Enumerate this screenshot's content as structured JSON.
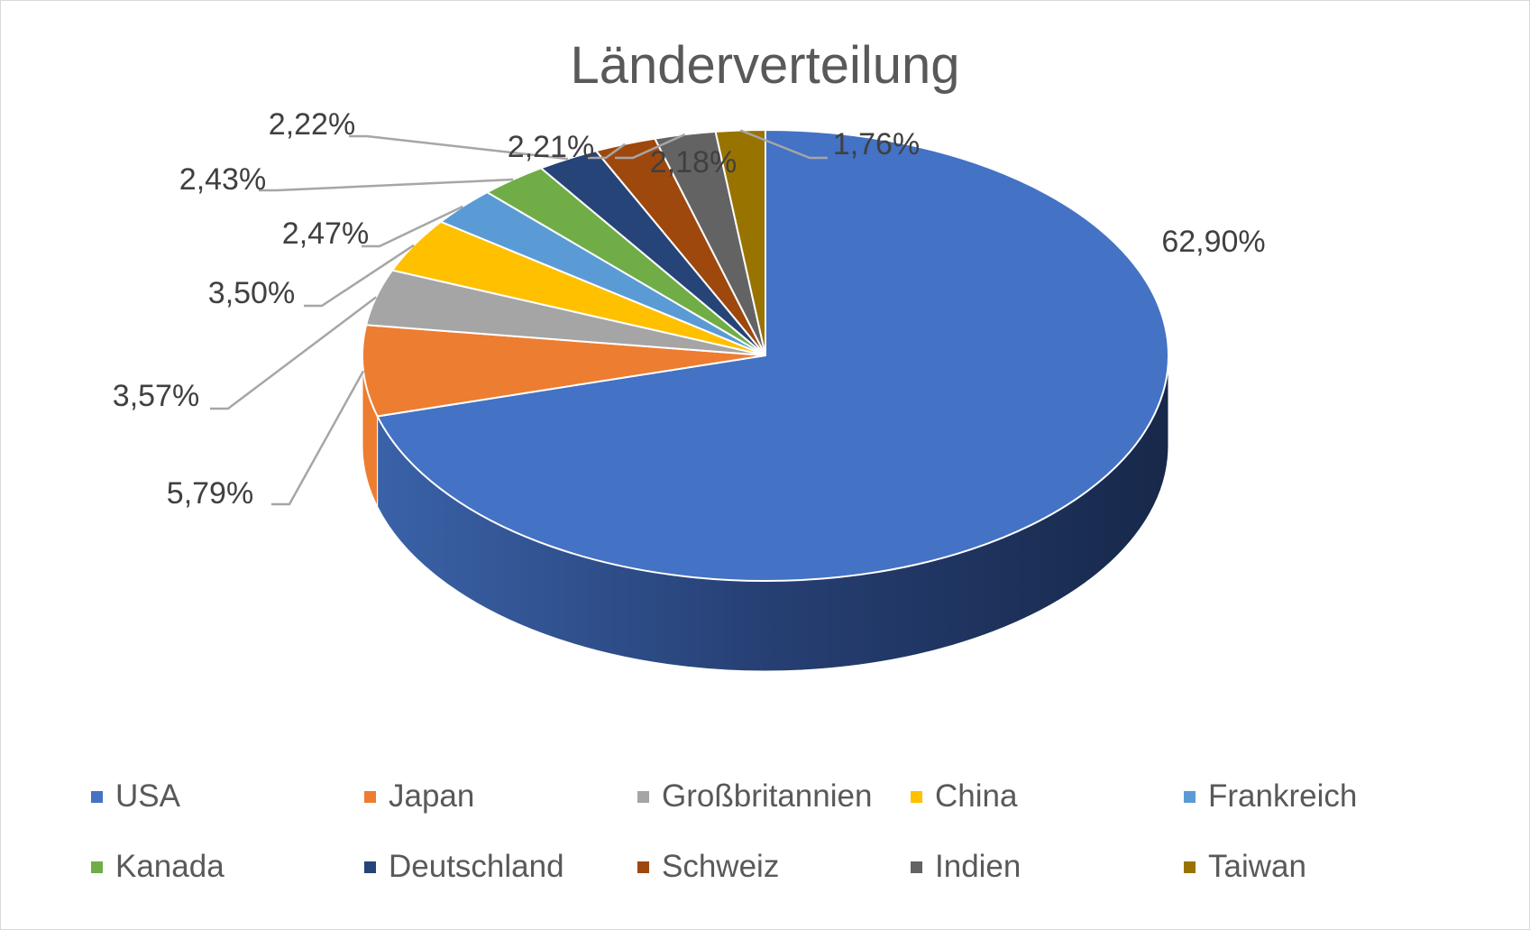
{
  "chart_data": {
    "type": "pie",
    "title": "Länderverteilung",
    "slices": [
      {
        "name": "USA",
        "value": 62.9,
        "label": "62,90%",
        "color": "#4472C4"
      },
      {
        "name": "Japan",
        "value": 5.79,
        "label": "5,79%",
        "color": "#ED7D31"
      },
      {
        "name": "Großbritannien",
        "value": 3.57,
        "label": "3,57%",
        "color": "#A5A5A5"
      },
      {
        "name": "China",
        "value": 3.5,
        "label": "3,50%",
        "color": "#FFC000"
      },
      {
        "name": "Frankreich",
        "value": 2.47,
        "label": "2,47%",
        "color": "#5B9BD5"
      },
      {
        "name": "Kanada",
        "value": 2.43,
        "label": "2,43%",
        "color": "#70AD47"
      },
      {
        "name": "Deutschland",
        "value": 2.22,
        "label": "2,22%",
        "color": "#264478"
      },
      {
        "name": "Schweiz",
        "value": 2.21,
        "label": "2,21%",
        "color": "#9E480E"
      },
      {
        "name": "Indien",
        "value": 2.18,
        "label": "2,18%",
        "color": "#636363"
      },
      {
        "name": "Taiwan",
        "value": 1.76,
        "label": "1,76%",
        "color": "#997300"
      }
    ],
    "legend_position": "bottom",
    "style": "3d-pie"
  }
}
